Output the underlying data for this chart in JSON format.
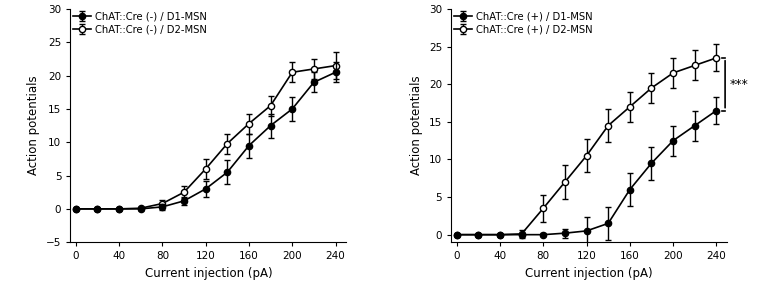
{
  "x_values": [
    0,
    20,
    40,
    60,
    80,
    100,
    120,
    140,
    160,
    180,
    200,
    220,
    240
  ],
  "left_d1_y": [
    0,
    0,
    0,
    0,
    0.3,
    1.2,
    3.0,
    5.5,
    9.5,
    12.5,
    15.0,
    19.0,
    20.5
  ],
  "left_d1_err": [
    0,
    0,
    0,
    0.1,
    0.4,
    0.6,
    1.2,
    1.8,
    1.8,
    1.8,
    1.8,
    1.5,
    1.5
  ],
  "left_d2_y": [
    0,
    0,
    0,
    0.1,
    0.8,
    2.5,
    6.0,
    9.8,
    12.8,
    15.5,
    20.5,
    21.0,
    21.5
  ],
  "left_d2_err": [
    0,
    0,
    0,
    0.2,
    0.6,
    0.9,
    1.5,
    1.5,
    1.5,
    1.5,
    1.5,
    1.5,
    2.0
  ],
  "right_d1_y": [
    0,
    0,
    0,
    0,
    0,
    0.2,
    0.5,
    1.5,
    6.0,
    9.5,
    12.5,
    14.5,
    16.5
  ],
  "right_d1_err": [
    0,
    0,
    0,
    0.1,
    0.2,
    0.6,
    1.8,
    2.2,
    2.2,
    2.2,
    2.0,
    2.0,
    1.8
  ],
  "right_d2_y": [
    0,
    0,
    0,
    0.1,
    3.5,
    7.0,
    10.5,
    14.5,
    17.0,
    19.5,
    21.5,
    22.5,
    23.5
  ],
  "right_d2_err": [
    0,
    0,
    0,
    0.5,
    1.8,
    2.2,
    2.2,
    2.2,
    2.0,
    2.0,
    2.0,
    2.0,
    1.8
  ],
  "left_legend": [
    "ChAT::Cre (-) / D1-MSN",
    "ChAT::Cre (-) / D2-MSN"
  ],
  "right_legend": [
    "ChAT::Cre (+) / D1-MSN",
    "ChAT::Cre (+) / D2-MSN"
  ],
  "xlabel": "Current injection (pA)",
  "ylabel": "Action potentials",
  "ylim_left": [
    -5,
    30
  ],
  "ylim_right": [
    -1,
    30
  ],
  "xlim": [
    -5,
    250
  ],
  "yticks_left": [
    -5,
    0,
    5,
    10,
    15,
    20,
    25,
    30
  ],
  "yticks_right": [
    0,
    5,
    10,
    15,
    20,
    25,
    30
  ],
  "xticks": [
    0,
    40,
    80,
    120,
    160,
    200,
    240
  ],
  "significance_label": "***",
  "sig_y1": 16.5,
  "sig_y2": 23.5
}
